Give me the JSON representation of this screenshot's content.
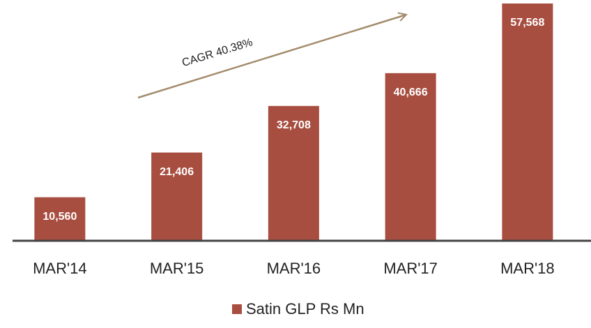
{
  "chart_data": {
    "type": "bar",
    "categories": [
      "MAR'14",
      "MAR'15",
      "MAR'16",
      "MAR'17",
      "MAR'18"
    ],
    "series": [
      {
        "name": "Satin GLP Rs Mn",
        "color": "#a84e40",
        "values": [
          10560,
          21406,
          32708,
          40666,
          57568
        ],
        "value_labels": [
          "10,560",
          "21,406",
          "32,708",
          "40,666",
          "57,568"
        ]
      }
    ],
    "annotations": [
      "CAGR 40.38%"
    ]
  }
}
